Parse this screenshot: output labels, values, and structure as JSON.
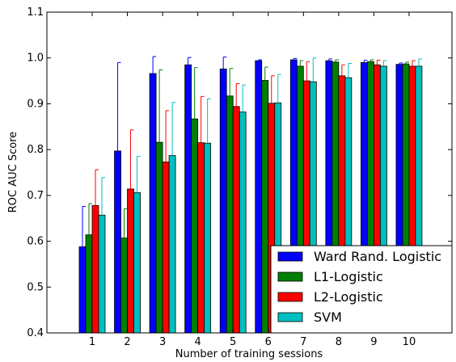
{
  "chart_data": {
    "type": "bar",
    "title": "",
    "xlabel": "Number of training sessions",
    "ylabel": "ROC AUC Score",
    "categories": [
      "1",
      "2",
      "3",
      "4",
      "5",
      "6",
      "7",
      "8",
      "9",
      "10"
    ],
    "ylim": [
      0.4,
      1.1
    ],
    "yticks": [
      "0.4",
      "0.5",
      "0.6",
      "0.7",
      "0.8",
      "0.9",
      "1.0",
      "1.1"
    ],
    "grid": false,
    "legend_position": "bottom-right",
    "error_bars": true,
    "series": [
      {
        "name": "Ward Rand. Logistic",
        "color": "#0000ff",
        "values": [
          0.588,
          0.797,
          0.966,
          0.985,
          0.976,
          0.994,
          0.996,
          0.994,
          0.99,
          0.986
        ],
        "errors": [
          0.088,
          0.193,
          0.037,
          0.016,
          0.026,
          0.002,
          0.003,
          0.004,
          0.005,
          0.003
        ]
      },
      {
        "name": "L1-Logistic",
        "color": "#007f00",
        "values": [
          0.614,
          0.607,
          0.816,
          0.867,
          0.917,
          0.951,
          0.982,
          0.991,
          0.992,
          0.987
        ],
        "errors": [
          0.068,
          0.064,
          0.158,
          0.112,
          0.06,
          0.029,
          0.012,
          0.005,
          0.004,
          0.004
        ]
      },
      {
        "name": "L2-Logistic",
        "color": "#ff0000",
        "values": [
          0.678,
          0.714,
          0.773,
          0.815,
          0.894,
          0.901,
          0.95,
          0.961,
          0.985,
          0.982
        ],
        "errors": [
          0.078,
          0.129,
          0.112,
          0.101,
          0.05,
          0.06,
          0.042,
          0.024,
          0.01,
          0.012
        ]
      },
      {
        "name": "SVM",
        "color": "#00bfbf",
        "values": [
          0.657,
          0.706,
          0.787,
          0.814,
          0.882,
          0.902,
          0.948,
          0.957,
          0.982,
          0.982
        ],
        "errors": [
          0.082,
          0.079,
          0.116,
          0.097,
          0.059,
          0.062,
          0.052,
          0.031,
          0.012,
          0.016
        ]
      }
    ]
  }
}
